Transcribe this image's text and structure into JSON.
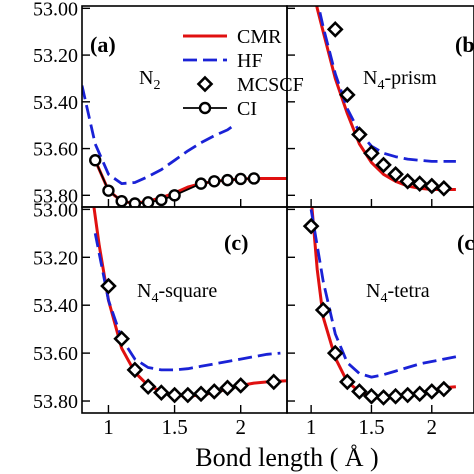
{
  "colors": {
    "cmr": "#e01010",
    "hf": "#1a22d6",
    "mcscf": "#000000",
    "ci": "#000000"
  },
  "legend": {
    "placement": "top-right of panel (a)",
    "entries": [
      {
        "label": "CMR",
        "style": "red solid line"
      },
      {
        "label": "HF",
        "style": "blue dashed line"
      },
      {
        "label": "MCSCF",
        "style": "open diamond"
      },
      {
        "label": "CI",
        "style": "line with open circle"
      }
    ]
  },
  "xlabel": "Bond length ( Å )",
  "chart_data": [
    {
      "type": "line",
      "panel": "(a)",
      "label_base": "N",
      "label_sub": "2",
      "label_rest": "",
      "xlim": [
        0.8,
        2.35
      ],
      "ylim": [
        -53.85,
        -52.99
      ],
      "xticks": [
        1,
        1.5,
        2
      ],
      "xtick_labels": [
        "",
        "",
        ""
      ],
      "yticks": [
        -53.0,
        -53.2,
        -53.4,
        -53.6,
        -53.8
      ],
      "ytick_labels": [
        "53.00",
        "53.20",
        "53.40",
        "53.60",
        "53.80"
      ],
      "series": [
        {
          "name": "CMR",
          "kind": "line",
          "x": [
            0.9,
            1.0,
            1.1,
            1.2,
            1.3,
            1.4,
            1.5,
            1.6,
            1.7,
            1.8,
            1.9,
            2.0,
            2.1,
            2.2,
            2.35
          ],
          "y": [
            -53.65,
            -53.78,
            -53.825,
            -53.835,
            -53.825,
            -53.81,
            -53.79,
            -53.765,
            -53.75,
            -53.74,
            -53.735,
            -53.73,
            -53.728,
            -53.728,
            -53.728
          ]
        },
        {
          "name": "HF",
          "kind": "dashed",
          "x": [
            0.8,
            0.9,
            1.0,
            1.1,
            1.2,
            1.3,
            1.4,
            1.5,
            1.6,
            1.7,
            1.8,
            1.9,
            1.95
          ],
          "y": [
            -53.33,
            -53.58,
            -53.71,
            -53.75,
            -53.745,
            -53.72,
            -53.69,
            -53.65,
            -53.61,
            -53.575,
            -53.545,
            -53.52,
            -53.5
          ]
        },
        {
          "name": "CI",
          "kind": "circles",
          "x": [
            0.9,
            1.0,
            1.1,
            1.2,
            1.3,
            1.4,
            1.5,
            1.7,
            1.8,
            1.9,
            2.0,
            2.1
          ],
          "y": [
            -53.65,
            -53.78,
            -53.825,
            -53.835,
            -53.83,
            -53.82,
            -53.8,
            -53.75,
            -53.74,
            -53.735,
            -53.73,
            -53.728
          ]
        }
      ]
    },
    {
      "type": "line",
      "panel": "(b",
      "label_base": "N",
      "label_sub": "4",
      "label_rest": "-prism",
      "xlim": [
        0.8,
        2.35
      ],
      "ylim": [
        -53.85,
        -52.99
      ],
      "xticks": [
        1,
        1.5,
        2
      ],
      "xtick_labels": [
        "",
        "",
        ""
      ],
      "yticks": [
        -53.0,
        -53.2,
        -53.4,
        -53.6,
        -53.8
      ],
      "ytick_labels": [
        "",
        "",
        "",
        "",
        ""
      ],
      "series": [
        {
          "name": "CMR",
          "kind": "line",
          "x": [
            1.0,
            1.05,
            1.1,
            1.2,
            1.3,
            1.4,
            1.5,
            1.6,
            1.7,
            1.8,
            1.9,
            2.0,
            2.1,
            2.2
          ],
          "y": [
            -52.85,
            -53.0,
            -53.1,
            -53.3,
            -53.45,
            -53.58,
            -53.66,
            -53.71,
            -53.74,
            -53.76,
            -53.77,
            -53.775,
            -53.775,
            -53.775
          ]
        },
        {
          "name": "HF",
          "kind": "dashed",
          "x": [
            1.0,
            1.1,
            1.2,
            1.3,
            1.4,
            1.5,
            1.6,
            1.7,
            1.8,
            1.9,
            2.0,
            2.1,
            2.2
          ],
          "y": [
            -52.85,
            -53.08,
            -53.28,
            -53.43,
            -53.53,
            -53.59,
            -53.62,
            -53.635,
            -53.645,
            -53.65,
            -53.655,
            -53.655,
            -53.655
          ]
        },
        {
          "name": "MCSCF",
          "kind": "diamonds",
          "x": [
            1.2,
            1.3,
            1.4,
            1.5,
            1.6,
            1.7,
            1.8,
            1.9,
            2.0,
            2.1
          ],
          "y": [
            -53.09,
            -53.37,
            -53.54,
            -53.62,
            -53.67,
            -53.71,
            -53.74,
            -53.75,
            -53.76,
            -53.77
          ]
        }
      ]
    },
    {
      "type": "line",
      "panel": "(c)",
      "label_base": "N",
      "label_sub": "4",
      "label_rest": "-square",
      "xlim": [
        0.8,
        2.35
      ],
      "ylim": [
        -53.85,
        -52.99
      ],
      "xticks": [
        1,
        1.5,
        2
      ],
      "xtick_labels": [
        "1",
        "1.5",
        "2"
      ],
      "yticks": [
        -53.0,
        -53.2,
        -53.4,
        -53.6,
        -53.8
      ],
      "ytick_labels": [
        "53.00",
        "53.20",
        "53.40",
        "53.60",
        "53.80"
      ],
      "series": [
        {
          "name": "CMR",
          "kind": "line",
          "x": [
            0.88,
            0.93,
            1.0,
            1.1,
            1.2,
            1.3,
            1.4,
            1.5,
            1.6,
            1.7,
            1.8,
            1.9,
            2.0,
            2.1,
            2.2,
            2.35
          ],
          "y": [
            -52.95,
            -53.15,
            -53.38,
            -53.58,
            -53.68,
            -53.735,
            -53.76,
            -53.775,
            -53.78,
            -53.775,
            -53.765,
            -53.75,
            -53.735,
            -53.725,
            -53.72,
            -53.715
          ]
        },
        {
          "name": "HF",
          "kind": "dashed",
          "x": [
            0.9,
            1.0,
            1.1,
            1.2,
            1.3,
            1.4,
            1.5,
            1.6,
            1.7,
            1.8,
            1.9,
            2.0,
            2.1,
            2.2,
            2.3
          ],
          "y": [
            -53.1,
            -53.38,
            -53.54,
            -53.625,
            -53.66,
            -53.67,
            -53.67,
            -53.665,
            -53.655,
            -53.645,
            -53.635,
            -53.625,
            -53.615,
            -53.605,
            -53.6
          ]
        },
        {
          "name": "MCSCF",
          "kind": "diamonds",
          "x": [
            1.0,
            1.1,
            1.2,
            1.3,
            1.4,
            1.5,
            1.6,
            1.7,
            1.8,
            1.9,
            2.0,
            2.25
          ],
          "y": [
            -53.32,
            -53.54,
            -53.67,
            -53.74,
            -53.765,
            -53.775,
            -53.775,
            -53.77,
            -53.76,
            -53.745,
            -53.735,
            -53.72
          ]
        }
      ]
    },
    {
      "type": "line",
      "panel": "(c",
      "label_base": "N",
      "label_sub": "4",
      "label_rest": "-tetra",
      "xlim": [
        0.8,
        2.35
      ],
      "ylim": [
        -53.85,
        -52.99
      ],
      "xticks": [
        1,
        1.5,
        2
      ],
      "xtick_labels": [
        "1",
        "1.5",
        "2"
      ],
      "yticks": [
        -53.0,
        -53.2,
        -53.4,
        -53.6,
        -53.8
      ],
      "ytick_labels": [
        "",
        "",
        "",
        "",
        ""
      ],
      "series": [
        {
          "name": "CMR",
          "kind": "line",
          "x": [
            1.0,
            1.05,
            1.1,
            1.2,
            1.3,
            1.4,
            1.5,
            1.6,
            1.7,
            1.8,
            1.9,
            2.0,
            2.1,
            2.2
          ],
          "y": [
            -52.95,
            -53.25,
            -53.45,
            -53.62,
            -53.72,
            -53.76,
            -53.785,
            -53.79,
            -53.785,
            -53.775,
            -53.765,
            -53.755,
            -53.745,
            -53.74
          ]
        },
        {
          "name": "HF",
          "kind": "dashed",
          "x": [
            1.0,
            1.1,
            1.2,
            1.3,
            1.4,
            1.5,
            1.6,
            1.7,
            1.8,
            1.9,
            2.0,
            2.1,
            2.2
          ],
          "y": [
            -53.0,
            -53.3,
            -53.52,
            -53.64,
            -53.685,
            -53.7,
            -53.69,
            -53.675,
            -53.66,
            -53.645,
            -53.635,
            -53.625,
            -53.615
          ]
        },
        {
          "name": "MCSCF",
          "kind": "diamonds",
          "x": [
            1.0,
            1.1,
            1.2,
            1.3,
            1.4,
            1.5,
            1.6,
            1.7,
            1.8,
            1.9,
            2.0,
            2.1
          ],
          "y": [
            -53.07,
            -53.42,
            -53.6,
            -53.72,
            -53.76,
            -53.78,
            -53.785,
            -53.78,
            -53.775,
            -53.77,
            -53.76,
            -53.75
          ]
        }
      ]
    }
  ]
}
